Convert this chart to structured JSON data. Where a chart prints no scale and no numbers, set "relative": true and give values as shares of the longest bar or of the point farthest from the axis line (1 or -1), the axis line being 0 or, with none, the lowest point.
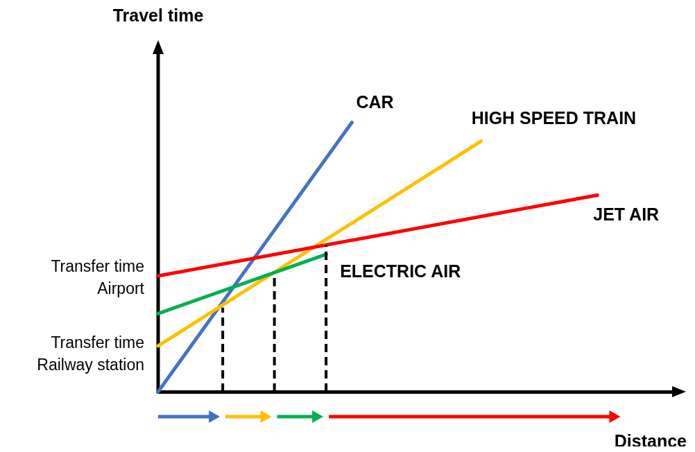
{
  "chart_data": {
    "type": "line",
    "xlabel": "Distance",
    "relative": true,
    "grid": false,
    "legend": false,
    "marker": "none",
    "line_style": "solid",
    "categories": [
      null,
      null,
      null,
      null,
      null,
      null,
      null,
      null,
      null,
      null,
      null,
      null,
      null,
      null,
      null,
      null,
      null,
      null,
      null,
      null,
      null,
      null,
      null,
      null,
      null,
      null,
      null,
      null,
      null,
      null,
      null,
      null,
      null,
      null,
      null,
      null,
      null,
      null,
      null,
      null,
      null
    ],
    "series": [
      {
        "name": "CAR",
        "color": "#4472c4",
        "values": [
          0,
          null,
          null,
          null,
          null,
          null,
          null,
          null,
          null,
          null,
          null,
          null,
          null,
          null,
          null,
          1,
          null,
          null,
          null,
          null,
          null,
          null,
          null,
          null,
          null,
          null,
          null,
          null,
          null,
          null,
          null,
          null,
          null,
          null,
          null,
          null,
          null,
          null,
          null,
          null,
          null
        ]
      },
      {
        "name": "HIGH SPEED TRAIN",
        "color": "#ffc000",
        "values": [
          0.17,
          null,
          null,
          null,
          null,
          null,
          null,
          null,
          null,
          null,
          null,
          null,
          null,
          null,
          null,
          null,
          null,
          null,
          null,
          null,
          null,
          null,
          null,
          null,
          null,
          0.93,
          null,
          null,
          null,
          null,
          null,
          null,
          null,
          null,
          null,
          null,
          null,
          null,
          null,
          null,
          null
        ]
      },
      {
        "name": "JET AIR",
        "color": "#ff0000",
        "values": [
          0.43,
          null,
          null,
          null,
          null,
          null,
          null,
          null,
          null,
          null,
          null,
          null,
          null,
          null,
          null,
          null,
          null,
          null,
          null,
          null,
          null,
          null,
          null,
          null,
          null,
          null,
          null,
          null,
          null,
          null,
          null,
          null,
          null,
          null,
          0.73,
          null,
          null,
          null,
          null,
          null,
          null
        ]
      },
      {
        "name": "ELECTRIC AIR",
        "color": "#00b050",
        "values": [
          0.29,
          null,
          null,
          null,
          null,
          null,
          null,
          null,
          null,
          null,
          null,
          null,
          null,
          0.51,
          null,
          null,
          null,
          null,
          null,
          null,
          null,
          null,
          null,
          null,
          null,
          null,
          null,
          null,
          null,
          null,
          null,
          null,
          null,
          null,
          null,
          null,
          null,
          null,
          null,
          null,
          null
        ]
      }
    ],
    "annotations": [
      "Travel time",
      "Transfer time\nAirport",
      "Transfer time\nRailway station"
    ]
  }
}
